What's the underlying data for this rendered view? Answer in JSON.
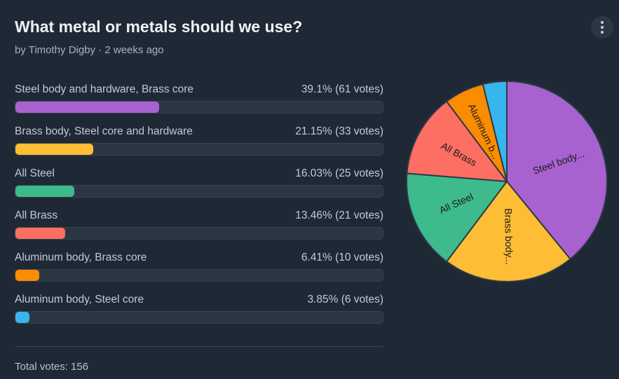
{
  "poll": {
    "title": "What metal or metals should we use?",
    "byline": "by Timothy Digby · 2 weeks ago",
    "total": "Total votes: 156"
  },
  "options": [
    {
      "label": "Steel body and hardware, Brass core",
      "result": "39.1% (61 votes)",
      "percent": 39.1,
      "color": "#a862d0",
      "slice_label": "Steel body..."
    },
    {
      "label": "Brass body, Steel core and hardware",
      "result": "21.15% (33 votes)",
      "percent": 21.15,
      "color": "#fdbd34",
      "slice_label": "Brass body..."
    },
    {
      "label": "All Steel",
      "result": "16.03% (25 votes)",
      "percent": 16.03,
      "color": "#3ebb8d",
      "slice_label": "All Steel"
    },
    {
      "label": "All Brass",
      "result": "13.46% (21 votes)",
      "percent": 13.46,
      "color": "#fd6f62",
      "slice_label": "All Brass"
    },
    {
      "label": "Aluminum body, Brass core",
      "result": "6.41% (10 votes)",
      "percent": 6.41,
      "color": "#fb8c00",
      "slice_label": "Aluminum b..."
    },
    {
      "label": "Aluminum body, Steel core",
      "result": "3.85% (6 votes)",
      "percent": 3.85,
      "color": "#36b6ec",
      "slice_label": ""
    }
  ],
  "menu": {
    "icon": "more-vertical-icon"
  }
}
